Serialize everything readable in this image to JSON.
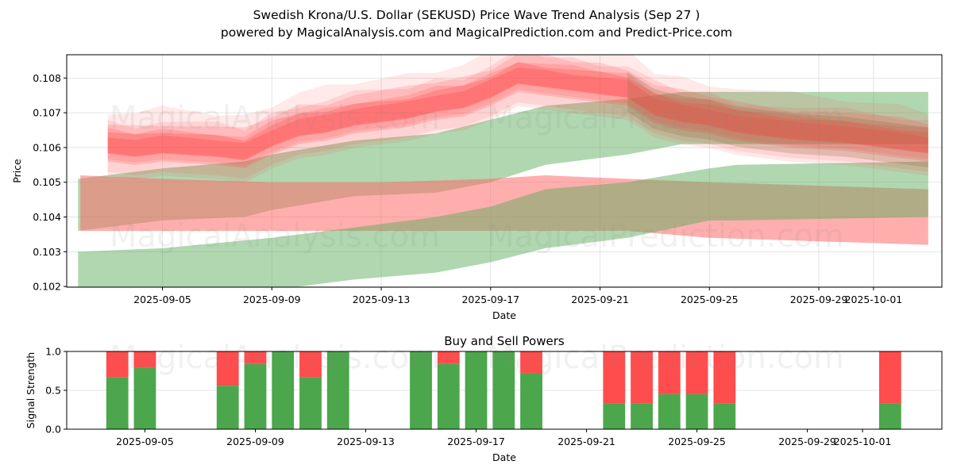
{
  "header": {
    "title": "Swedish Krona/U.S. Dollar (SEKUSD) Price Wave Trend Analysis (Sep 27 )",
    "subtitle": "powered by MagicalAnalysis.com and MagicalPrediction.com and Predict-Price.com"
  },
  "watermarks": [
    "MagicalAnalysis.com",
    "MagicalPrediction.com"
  ],
  "colors": {
    "red": "#ff4c4c",
    "red_band": "#ff6b6b",
    "green_band": "#5aab5a",
    "buy": "#4ca64c",
    "sell": "#ff4c4c",
    "grid": "#dddddd"
  },
  "chart_data": [
    {
      "type": "area",
      "title": "",
      "xlabel": "Date",
      "ylabel": "Price",
      "ylim": [
        0.10198,
        0.10867
      ],
      "xlim": [
        "2025-09-01T12:00",
        "2025-10-03T12:00"
      ],
      "grid": true,
      "yticks": [
        "0.102",
        "0.103",
        "0.104",
        "0.105",
        "0.106",
        "0.107",
        "0.108"
      ],
      "ytick_values": [
        0.102,
        0.103,
        0.104,
        0.105,
        0.106,
        0.107,
        0.108
      ],
      "xticks": [
        "2025-09-05",
        "2025-09-09",
        "2025-09-13",
        "2025-09-17",
        "2025-09-21",
        "2025-09-25",
        "2025-09-29",
        "2025-10-01"
      ],
      "bands": [
        {
          "name": "upper-green-band",
          "color": "green",
          "x": [
            "2025-09-01T22:00",
            "2025-09-05",
            "2025-09-08",
            "2025-09-09",
            "2025-09-12",
            "2025-09-15",
            "2025-09-17",
            "2025-09-19",
            "2025-09-22",
            "2025-09-24",
            "2025-10-03"
          ],
          "upper": [
            0.1051,
            0.1054,
            0.1056,
            0.1058,
            0.1062,
            0.1064,
            0.1068,
            0.1072,
            0.1074,
            0.1076,
            0.1076
          ],
          "lower": [
            0.1036,
            0.1039,
            0.104,
            0.1042,
            0.1046,
            0.1047,
            0.105,
            0.1055,
            0.1058,
            0.1061,
            0.1061
          ]
        },
        {
          "name": "middle-red-band",
          "color": "red",
          "x": [
            "2025-09-02",
            "2025-09-05",
            "2025-09-09",
            "2025-09-13",
            "2025-09-17",
            "2025-09-19",
            "2025-09-22",
            "2025-09-25",
            "2025-10-03"
          ],
          "upper": [
            0.1052,
            0.1051,
            0.105,
            0.105,
            0.1051,
            0.1052,
            0.1051,
            0.105,
            0.1048
          ],
          "lower": [
            0.1036,
            0.1036,
            0.1036,
            0.1036,
            0.1036,
            0.1036,
            0.1036,
            0.1034,
            0.1032
          ]
        },
        {
          "name": "lower-green-band",
          "color": "green",
          "x": [
            "2025-09-01T22:00",
            "2025-09-05",
            "2025-09-09",
            "2025-09-12",
            "2025-09-15",
            "2025-09-17",
            "2025-09-19",
            "2025-09-22",
            "2025-09-25",
            "2025-09-26",
            "2025-10-03"
          ],
          "upper": [
            0.103,
            0.1031,
            0.1034,
            0.1037,
            0.104,
            0.1043,
            0.1048,
            0.105,
            0.1054,
            0.1055,
            0.1056
          ],
          "lower": [
            0.1019,
            0.1019,
            0.1019,
            0.1022,
            0.1024,
            0.1027,
            0.1031,
            0.1034,
            0.1039,
            0.1039,
            0.104
          ]
        }
      ],
      "wave": {
        "name": "price-wave",
        "color": "red",
        "x": [
          "2025-09-03",
          "2025-09-04",
          "2025-09-05",
          "2025-09-07",
          "2025-09-08",
          "2025-09-09",
          "2025-09-10",
          "2025-09-11",
          "2025-09-12",
          "2025-09-14",
          "2025-09-15",
          "2025-09-16",
          "2025-09-17",
          "2025-09-18",
          "2025-09-19",
          "2025-09-20",
          "2025-09-21",
          "2025-09-22",
          "2025-09-23",
          "2025-09-24",
          "2025-09-25",
          "2025-09-26",
          "2025-09-28",
          "2025-09-30",
          "2025-10-02",
          "2025-10-03"
        ],
        "center": [
          0.1061,
          0.106,
          0.1061,
          0.106,
          0.1059,
          0.1063,
          0.1066,
          0.1067,
          0.1069,
          0.1071,
          0.1073,
          0.1074,
          0.1077,
          0.1081,
          0.108,
          0.1079,
          0.1078,
          0.1077,
          0.1072,
          0.107,
          0.1069,
          0.1067,
          0.1065,
          0.1064,
          0.1062,
          0.1061
        ],
        "spread": 0.0004,
        "blend_over_green_from": "2025-09-22"
      }
    },
    {
      "type": "bar",
      "title": "Buy and Sell Powers",
      "xlabel": "Date",
      "ylabel": "Signal Strength",
      "ylim": [
        0.0,
        1.0
      ],
      "xlim": [
        "2025-09-02T04:00",
        "2025-10-03T21:00"
      ],
      "grid": true,
      "yticks": [
        "0.0",
        "0.5",
        "1.0"
      ],
      "ytick_values": [
        0.0,
        0.5,
        1.0
      ],
      "xticks": [
        "2025-09-05",
        "2025-09-09",
        "2025-09-13",
        "2025-09-17",
        "2025-09-21",
        "2025-09-25",
        "2025-09-29",
        "2025-10-01"
      ],
      "categories": [
        "2025-09-04",
        "2025-09-05",
        "2025-09-08",
        "2025-09-09",
        "2025-09-10",
        "2025-09-11",
        "2025-09-12",
        "2025-09-15",
        "2025-09-16",
        "2025-09-17",
        "2025-09-18",
        "2025-09-19",
        "2025-09-22",
        "2025-09-23",
        "2025-09-24",
        "2025-09-25",
        "2025-09-26",
        "2025-10-02"
      ],
      "series": [
        {
          "name": "Buy",
          "color": "buy",
          "values": [
            0.67,
            0.79,
            0.56,
            0.84,
            1.0,
            0.67,
            1.0,
            1.0,
            0.84,
            1.0,
            1.0,
            0.72,
            0.33,
            0.33,
            0.45,
            0.45,
            0.33,
            0.33
          ]
        },
        {
          "name": "Sell",
          "color": "sell",
          "values": [
            0.33,
            0.21,
            0.44,
            0.16,
            0.0,
            0.33,
            0.0,
            0.0,
            0.16,
            0.0,
            0.0,
            0.28,
            0.67,
            0.67,
            0.55,
            0.55,
            0.67,
            0.67
          ]
        }
      ]
    }
  ]
}
